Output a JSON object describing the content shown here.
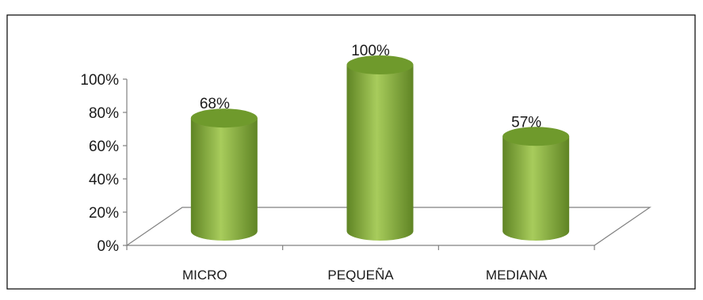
{
  "chart_data": {
    "type": "bar",
    "categories": [
      "MICRO",
      "PEQUEÑA",
      "MEDIANA"
    ],
    "values": [
      68,
      100,
      57
    ],
    "data_labels": [
      "68%",
      "100%",
      "57%"
    ],
    "title": "",
    "xlabel": "",
    "ylabel": "",
    "ylim": [
      0,
      100
    ],
    "yticks": [
      0,
      20,
      40,
      60,
      80,
      100
    ],
    "ytick_labels": [
      "0%",
      "20%",
      "40%",
      "60%",
      "80%",
      "100%"
    ],
    "grid": false,
    "legend": "none",
    "style": "3d-cylinder",
    "colors": {
      "bar_light": "#a8cc5c",
      "bar_mid": "#8ab43e",
      "bar_dark": "#5f8424",
      "bar_top": "#6f9a2c",
      "axis": "#808080",
      "frame": "#000000"
    }
  }
}
